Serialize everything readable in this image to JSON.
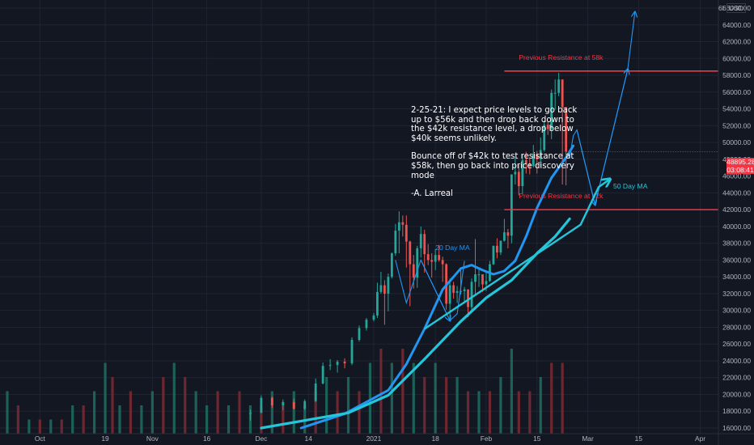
{
  "chart_data": {
    "type": "candlestick",
    "title": "",
    "currency": "USD",
    "y_axis": {
      "ticks": [
        16000,
        18000,
        20000,
        22000,
        24000,
        26000,
        28000,
        30000,
        32000,
        34000,
        36000,
        38000,
        40000,
        42000,
        44000,
        46000,
        48000,
        50000,
        52000,
        54000,
        56000,
        58000,
        60000,
        62000,
        64000,
        66000
      ],
      "tick_labels": [
        "16000.00",
        "18000.00",
        "20000.00",
        "22000.00",
        "24000.00",
        "26000.00",
        "28000.00",
        "30000.00",
        "32000.00",
        "34000.00",
        "36000.00",
        "38000.00",
        "40000.00",
        "42000.00",
        "44000.00",
        "46000.00",
        "48000.00",
        "50000.00",
        "52000.00",
        "54000.00",
        "56000.00",
        "58000.00",
        "60000.00",
        "62000.00",
        "64000.00",
        "66000.00"
      ],
      "range": [
        15500,
        67000
      ]
    },
    "x_axis": {
      "tick_labels": [
        "Oct",
        "19",
        "Nov",
        "16",
        "Dec",
        "14",
        "2021",
        "18",
        "Feb",
        "15",
        "Mar",
        "15",
        "Apr"
      ],
      "range": [
        "2020-09-20",
        "2021-04-06"
      ]
    },
    "current_price": {
      "value": "48895.28",
      "countdown": "03:08:41",
      "color": "#f23645"
    },
    "grid": true,
    "series_candles": [
      [
        "2020-11-28",
        17700,
        18200,
        16900,
        17800
      ],
      [
        "2020-12-01",
        17800,
        19900,
        17800,
        19600
      ],
      [
        "2020-12-04",
        19600,
        19700,
        18400,
        18700
      ],
      [
        "2020-12-07",
        18700,
        19400,
        18100,
        19100
      ],
      [
        "2020-12-10",
        19100,
        19500,
        18200,
        18300
      ],
      [
        "2020-12-13",
        18300,
        19400,
        18100,
        19200
      ],
      [
        "2020-12-16",
        19200,
        21900,
        19100,
        21300
      ],
      [
        "2020-12-18",
        21300,
        23800,
        21200,
        23400
      ],
      [
        "2020-12-20",
        23400,
        24200,
        22900,
        23500
      ],
      [
        "2020-12-22",
        23500,
        24100,
        22600,
        23900
      ],
      [
        "2020-12-24",
        23900,
        24300,
        23100,
        23700
      ],
      [
        "2020-12-26",
        23700,
        26800,
        23500,
        26500
      ],
      [
        "2020-12-28",
        26500,
        28200,
        26300,
        27900
      ],
      [
        "2020-12-30",
        27900,
        29100,
        27600,
        28900
      ],
      [
        "2021-01-01",
        28900,
        29700,
        28700,
        29400
      ],
      [
        "2021-01-02",
        29400,
        33300,
        29100,
        32200
      ],
      [
        "2021-01-03",
        32200,
        34600,
        32000,
        33000
      ],
      [
        "2021-01-04",
        33000,
        33600,
        28300,
        32000
      ],
      [
        "2021-01-05",
        32000,
        34400,
        29900,
        34000
      ],
      [
        "2021-01-06",
        34000,
        36900,
        33800,
        36800
      ],
      [
        "2021-01-07",
        36800,
        40300,
        36500,
        39500
      ],
      [
        "2021-01-08",
        39500,
        41800,
        36800,
        40500
      ],
      [
        "2021-01-09",
        40500,
        41300,
        38800,
        40200
      ],
      [
        "2021-01-10",
        40200,
        41300,
        35100,
        38200
      ],
      [
        "2021-01-11",
        38200,
        38300,
        30500,
        35500
      ],
      [
        "2021-01-12",
        35500,
        36600,
        32600,
        33900
      ],
      [
        "2021-01-13",
        33900,
        37700,
        32700,
        37400
      ],
      [
        "2021-01-14",
        37400,
        40000,
        36300,
        39100
      ],
      [
        "2021-01-15",
        39100,
        39600,
        34500,
        36700
      ],
      [
        "2021-01-16",
        36700,
        37900,
        35400,
        36000
      ],
      [
        "2021-01-17",
        36000,
        36800,
        33900,
        35800
      ],
      [
        "2021-01-18",
        35800,
        37300,
        34800,
        36600
      ],
      [
        "2021-01-19",
        36600,
        37800,
        35800,
        36000
      ],
      [
        "2021-01-20",
        36000,
        36400,
        33400,
        35500
      ],
      [
        "2021-01-21",
        35500,
        35600,
        30100,
        30800
      ],
      [
        "2021-01-22",
        30800,
        33800,
        28900,
        33000
      ],
      [
        "2021-01-23",
        33000,
        33400,
        31400,
        32100
      ],
      [
        "2021-01-24",
        32100,
        32900,
        30900,
        32300
      ],
      [
        "2021-01-25",
        32300,
        34800,
        31900,
        32300
      ],
      [
        "2021-01-26",
        32300,
        32800,
        30800,
        32500
      ],
      [
        "2021-01-27",
        32500,
        32500,
        29200,
        30400
      ],
      [
        "2021-01-28",
        30400,
        33800,
        29900,
        33400
      ],
      [
        "2021-01-29",
        33400,
        38500,
        31900,
        34300
      ],
      [
        "2021-01-30",
        34300,
        34900,
        32800,
        34300
      ],
      [
        "2021-01-31",
        34300,
        34300,
        32200,
        33100
      ],
      [
        "2021-02-01",
        33100,
        34700,
        32300,
        33500
      ],
      [
        "2021-02-02",
        33500,
        35900,
        33400,
        35500
      ],
      [
        "2021-02-03",
        35500,
        37700,
        35400,
        37700
      ],
      [
        "2021-02-04",
        37700,
        38600,
        36200,
        36900
      ],
      [
        "2021-02-05",
        36900,
        38300,
        36600,
        38300
      ],
      [
        "2021-02-06",
        38300,
        40900,
        38200,
        39300
      ],
      [
        "2021-02-07",
        39300,
        39700,
        37400,
        38900
      ],
      [
        "2021-02-08",
        38900,
        46200,
        38000,
        46200
      ],
      [
        "2021-02-09",
        46200,
        48200,
        45000,
        46500
      ],
      [
        "2021-02-10",
        46500,
        47300,
        43700,
        44800
      ],
      [
        "2021-02-11",
        44800,
        48600,
        43900,
        47900
      ],
      [
        "2021-02-12",
        47900,
        48900,
        46300,
        47400
      ],
      [
        "2021-02-13",
        47400,
        48200,
        46200,
        47200
      ],
      [
        "2021-02-14",
        47200,
        49700,
        47000,
        48600
      ],
      [
        "2021-02-15",
        48600,
        49000,
        46300,
        48000
      ],
      [
        "2021-02-16",
        48000,
        50600,
        47100,
        49100
      ],
      [
        "2021-02-17",
        49100,
        52600,
        48900,
        52100
      ],
      [
        "2021-02-18",
        52100,
        52500,
        50900,
        51600
      ],
      [
        "2021-02-19",
        51600,
        56300,
        50400,
        55900
      ],
      [
        "2021-02-20",
        55900,
        57500,
        53900,
        55900
      ],
      [
        "2021-02-21",
        55900,
        58300,
        55500,
        57500
      ],
      [
        "2021-02-22",
        57500,
        57500,
        45000,
        54200
      ],
      [
        "2021-02-23",
        54200,
        54200,
        44900,
        48900
      ]
    ],
    "series_volume": [
      [
        "2020-09-22",
        3,
        0
      ],
      [
        "2020-09-25",
        2,
        1
      ],
      [
        "2020-09-28",
        1,
        0
      ],
      [
        "2020-10-01",
        1,
        1
      ],
      [
        "2020-10-04",
        1,
        0
      ],
      [
        "2020-10-07",
        1,
        1
      ],
      [
        "2020-10-10",
        2,
        0
      ],
      [
        "2020-10-13",
        2,
        1
      ],
      [
        "2020-10-16",
        3,
        0
      ],
      [
        "2020-10-19",
        5,
        0
      ],
      [
        "2020-10-21",
        4,
        1
      ],
      [
        "2020-10-23",
        2,
        0
      ],
      [
        "2020-10-26",
        3,
        1
      ],
      [
        "2020-10-29",
        2,
        0
      ],
      [
        "2020-11-01",
        3,
        0
      ],
      [
        "2020-11-04",
        4,
        1
      ],
      [
        "2020-11-07",
        5,
        0
      ],
      [
        "2020-11-10",
        4,
        1
      ],
      [
        "2020-11-13",
        3,
        0
      ],
      [
        "2020-11-16",
        2,
        0
      ],
      [
        "2020-11-19",
        3,
        1
      ],
      [
        "2020-11-22",
        2,
        0
      ],
      [
        "2020-11-25",
        3,
        1
      ],
      [
        "2020-11-28",
        2,
        0
      ],
      [
        "2020-12-01",
        2,
        1
      ],
      [
        "2020-12-04",
        3,
        0
      ],
      [
        "2020-12-07",
        2,
        1
      ],
      [
        "2020-12-10",
        3,
        0
      ],
      [
        "2020-12-13",
        2,
        0
      ],
      [
        "2020-12-16",
        3,
        1
      ],
      [
        "2020-12-19",
        4,
        0
      ],
      [
        "2020-12-22",
        3,
        1
      ],
      [
        "2020-12-25",
        4,
        0
      ],
      [
        "2020-12-28",
        3,
        1
      ],
      [
        "2020-12-31",
        5,
        0
      ],
      [
        "2021-01-03",
        6,
        1
      ],
      [
        "2021-01-06",
        5,
        0
      ],
      [
        "2021-01-09",
        6,
        1
      ],
      [
        "2021-01-12",
        5,
        0
      ],
      [
        "2021-01-15",
        4,
        1
      ],
      [
        "2021-01-18",
        5,
        0
      ],
      [
        "2021-01-21",
        4,
        1
      ],
      [
        "2021-01-24",
        4,
        0
      ],
      [
        "2021-01-27",
        3,
        1
      ],
      [
        "2021-01-30",
        3,
        0
      ],
      [
        "2021-02-02",
        3,
        1
      ],
      [
        "2021-02-05",
        4,
        0
      ],
      [
        "2021-02-08",
        6,
        0
      ],
      [
        "2021-02-10",
        3,
        1
      ],
      [
        "2021-02-13",
        3,
        1
      ],
      [
        "2021-02-16",
        4,
        0
      ],
      [
        "2021-02-19",
        5,
        1
      ],
      [
        "2021-02-22",
        5,
        1
      ]
    ],
    "moving_averages": [
      {
        "name": "20 Day MA",
        "color": "#2196f3",
        "points": [
          [
            "2020-12-12",
            16000
          ],
          [
            "2020-12-24",
            17700
          ],
          [
            "2021-01-05",
            20500
          ],
          [
            "2021-01-10",
            23600
          ],
          [
            "2021-01-15",
            27800
          ],
          [
            "2021-01-20",
            32500
          ],
          [
            "2021-01-25",
            35000
          ],
          [
            "2021-01-28",
            35400
          ],
          [
            "2021-01-31",
            34800
          ],
          [
            "2021-02-03",
            34300
          ],
          [
            "2021-02-06",
            34700
          ],
          [
            "2021-02-09",
            35900
          ],
          [
            "2021-02-12",
            38800
          ],
          [
            "2021-02-15",
            42200
          ],
          [
            "2021-02-19",
            45800
          ],
          [
            "2021-02-23",
            48200
          ],
          [
            "2021-02-25",
            49600
          ]
        ]
      },
      {
        "name": "50 Day MA",
        "color": "#26c6da",
        "points": [
          [
            "2020-12-01",
            16000
          ],
          [
            "2020-12-25",
            17800
          ],
          [
            "2021-01-05",
            19900
          ],
          [
            "2021-01-15",
            24200
          ],
          [
            "2021-01-25",
            28700
          ],
          [
            "2021-02-01",
            31500
          ],
          [
            "2021-02-08",
            33600
          ],
          [
            "2021-02-15",
            36800
          ],
          [
            "2021-02-20",
            38800
          ],
          [
            "2021-02-24",
            40900
          ]
        ]
      }
    ],
    "annotations": {
      "resistance_lines": [
        {
          "label": "Previous Resistance at 58k",
          "value": 58500,
          "start": "2021-02-06",
          "color": "#f23645"
        },
        {
          "label": "Previous Resistance at 42k",
          "value": 42000,
          "start": "2021-02-06",
          "color": "#f23645"
        }
      ],
      "note_lines": [
        "2-25-21: I expect price levels to go back up to $56k and then drop back down to the $42k resistance level, a drop below $40k seems unlikely.",
        "Bounce off of $42k to test resistance at $58k, then go back into price discovery mode",
        "-A. Larreal"
      ],
      "ma_label_20": "20 Day MA",
      "ma_label_50": "50 Day MA",
      "zigzag_past": [
        [
          "2021-01-07",
          36000
        ],
        [
          "2021-01-10",
          30900
        ],
        [
          "2021-01-14",
          36000
        ],
        [
          "2021-01-22",
          28800
        ],
        [
          "2021-01-24",
          29600
        ],
        [
          "2021-01-26",
          35900
        ]
      ],
      "projection": [
        [
          "2021-02-24",
          48200
        ],
        [
          "2021-02-25",
          50800
        ],
        [
          "2021-02-26",
          51500
        ],
        [
          "2021-03-03",
          42600
        ],
        [
          "2021-03-12",
          58700
        ],
        [
          "2021-03-14",
          65500
        ]
      ],
      "trend_arrow": [
        [
          "2021-01-15",
          27800
        ],
        [
          "2021-02-27",
          40200
        ],
        [
          "2021-03-04",
          44700
        ],
        [
          "2021-03-07",
          45600
        ]
      ]
    }
  }
}
